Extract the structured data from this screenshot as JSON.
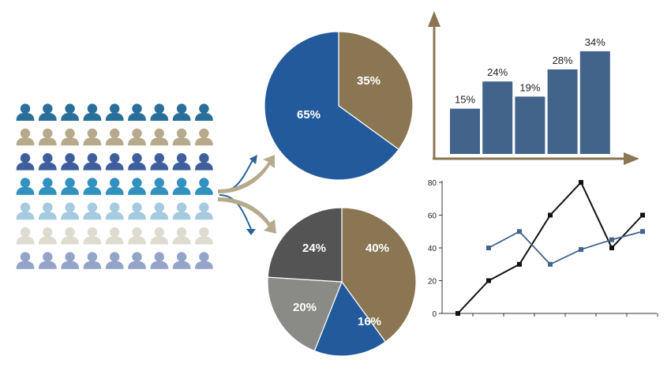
{
  "colors": {
    "blue": "#235a9b",
    "brown": "#8b7653",
    "dark_gray": "#545454",
    "mid_gray": "#8a8a86",
    "bar": "#43648a",
    "axis_arrow": "#8b7653",
    "arrow_blue": "#2a6496",
    "arrow_tan": "#b6a98c",
    "line_black": "#111111",
    "line_blue": "#43648a",
    "people_rows": [
      "#2a6f9a",
      "#b6a98c",
      "#3f5f9c",
      "#3391bf",
      "#a6cae0",
      "#dedcd0",
      "#94a3c8"
    ]
  },
  "icons": {
    "people": "person-icon",
    "arrows": "curved-arrow-icon"
  },
  "people_grid": {
    "rows": 7,
    "cols": 9
  },
  "chart_data": [
    {
      "type": "pie",
      "slices": [
        {
          "label": "35%",
          "value": 35,
          "color": "#8b7653"
        },
        {
          "label": "65%",
          "value": 65,
          "color": "#235a9b"
        }
      ]
    },
    {
      "type": "pie",
      "slices": [
        {
          "label": "40%",
          "value": 40,
          "color": "#8b7653"
        },
        {
          "label": "16%",
          "value": 16,
          "color": "#235a9b"
        },
        {
          "label": "20%",
          "value": 20,
          "color": "#8a8a86"
        },
        {
          "label": "24%",
          "value": 24,
          "color": "#545454"
        }
      ]
    },
    {
      "type": "bar",
      "values": [
        15,
        24,
        19,
        28,
        34
      ],
      "labels": [
        "15%",
        "24%",
        "19%",
        "28%",
        "34%"
      ],
      "ylim": [
        0,
        40
      ]
    },
    {
      "type": "line",
      "x": [
        0,
        1,
        2,
        3,
        4,
        5,
        6
      ],
      "series": [
        {
          "values": [
            0,
            20,
            30,
            60,
            80,
            40,
            60
          ],
          "color": "#111111",
          "marker": "square"
        },
        {
          "values": [
            null,
            40,
            50,
            30,
            39,
            45,
            50
          ],
          "color": "#43648a",
          "marker": "square"
        }
      ],
      "ylim": [
        0,
        80
      ],
      "yticks": [
        "0",
        "20",
        "40",
        "60",
        "80"
      ],
      "xticks_count": 7
    }
  ]
}
